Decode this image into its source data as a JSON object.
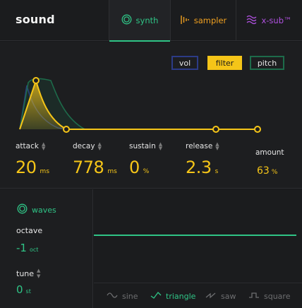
{
  "header": {
    "title": "sound",
    "tabs": [
      {
        "label": "synth",
        "icon": "synth-ring-icon",
        "color": "#2fc486",
        "active": true
      },
      {
        "label": "sampler",
        "icon": "sampler-bars-icon",
        "color": "#f0a020"
      },
      {
        "label": "x-sub™",
        "icon": "xsub-waves-icon",
        "color": "#b051e0"
      }
    ]
  },
  "envelope": {
    "modes": [
      {
        "label": "vol",
        "color": "#2c3b86"
      },
      {
        "label": "filter",
        "color": "#f5c518",
        "active": true
      },
      {
        "label": "pitch",
        "color": "#1d6b4a"
      }
    ],
    "params": [
      {
        "label": "attack",
        "value": "20",
        "unit": "ms"
      },
      {
        "label": "decay",
        "value": "778",
        "unit": "ms"
      },
      {
        "label": "sustain",
        "value": "0",
        "unit": "%"
      },
      {
        "label": "release",
        "value": "2.3",
        "unit": "s"
      }
    ],
    "amount": {
      "label": "amount",
      "value": "63",
      "unit": "%"
    },
    "accent": "#f5c518"
  },
  "waves": {
    "title": "waves",
    "octave": {
      "label": "octave",
      "value": "-1",
      "unit": "oct"
    },
    "tune": {
      "label": "tune",
      "value": "0",
      "unit": "st"
    },
    "shapes": [
      {
        "label": "sine",
        "icon": "sine-wave-icon"
      },
      {
        "label": "triangle",
        "icon": "triangle-wave-icon",
        "active": true
      },
      {
        "label": "saw",
        "icon": "saw-wave-icon"
      },
      {
        "label": "square",
        "icon": "square-wave-icon"
      }
    ],
    "accent": "#2fc486"
  }
}
